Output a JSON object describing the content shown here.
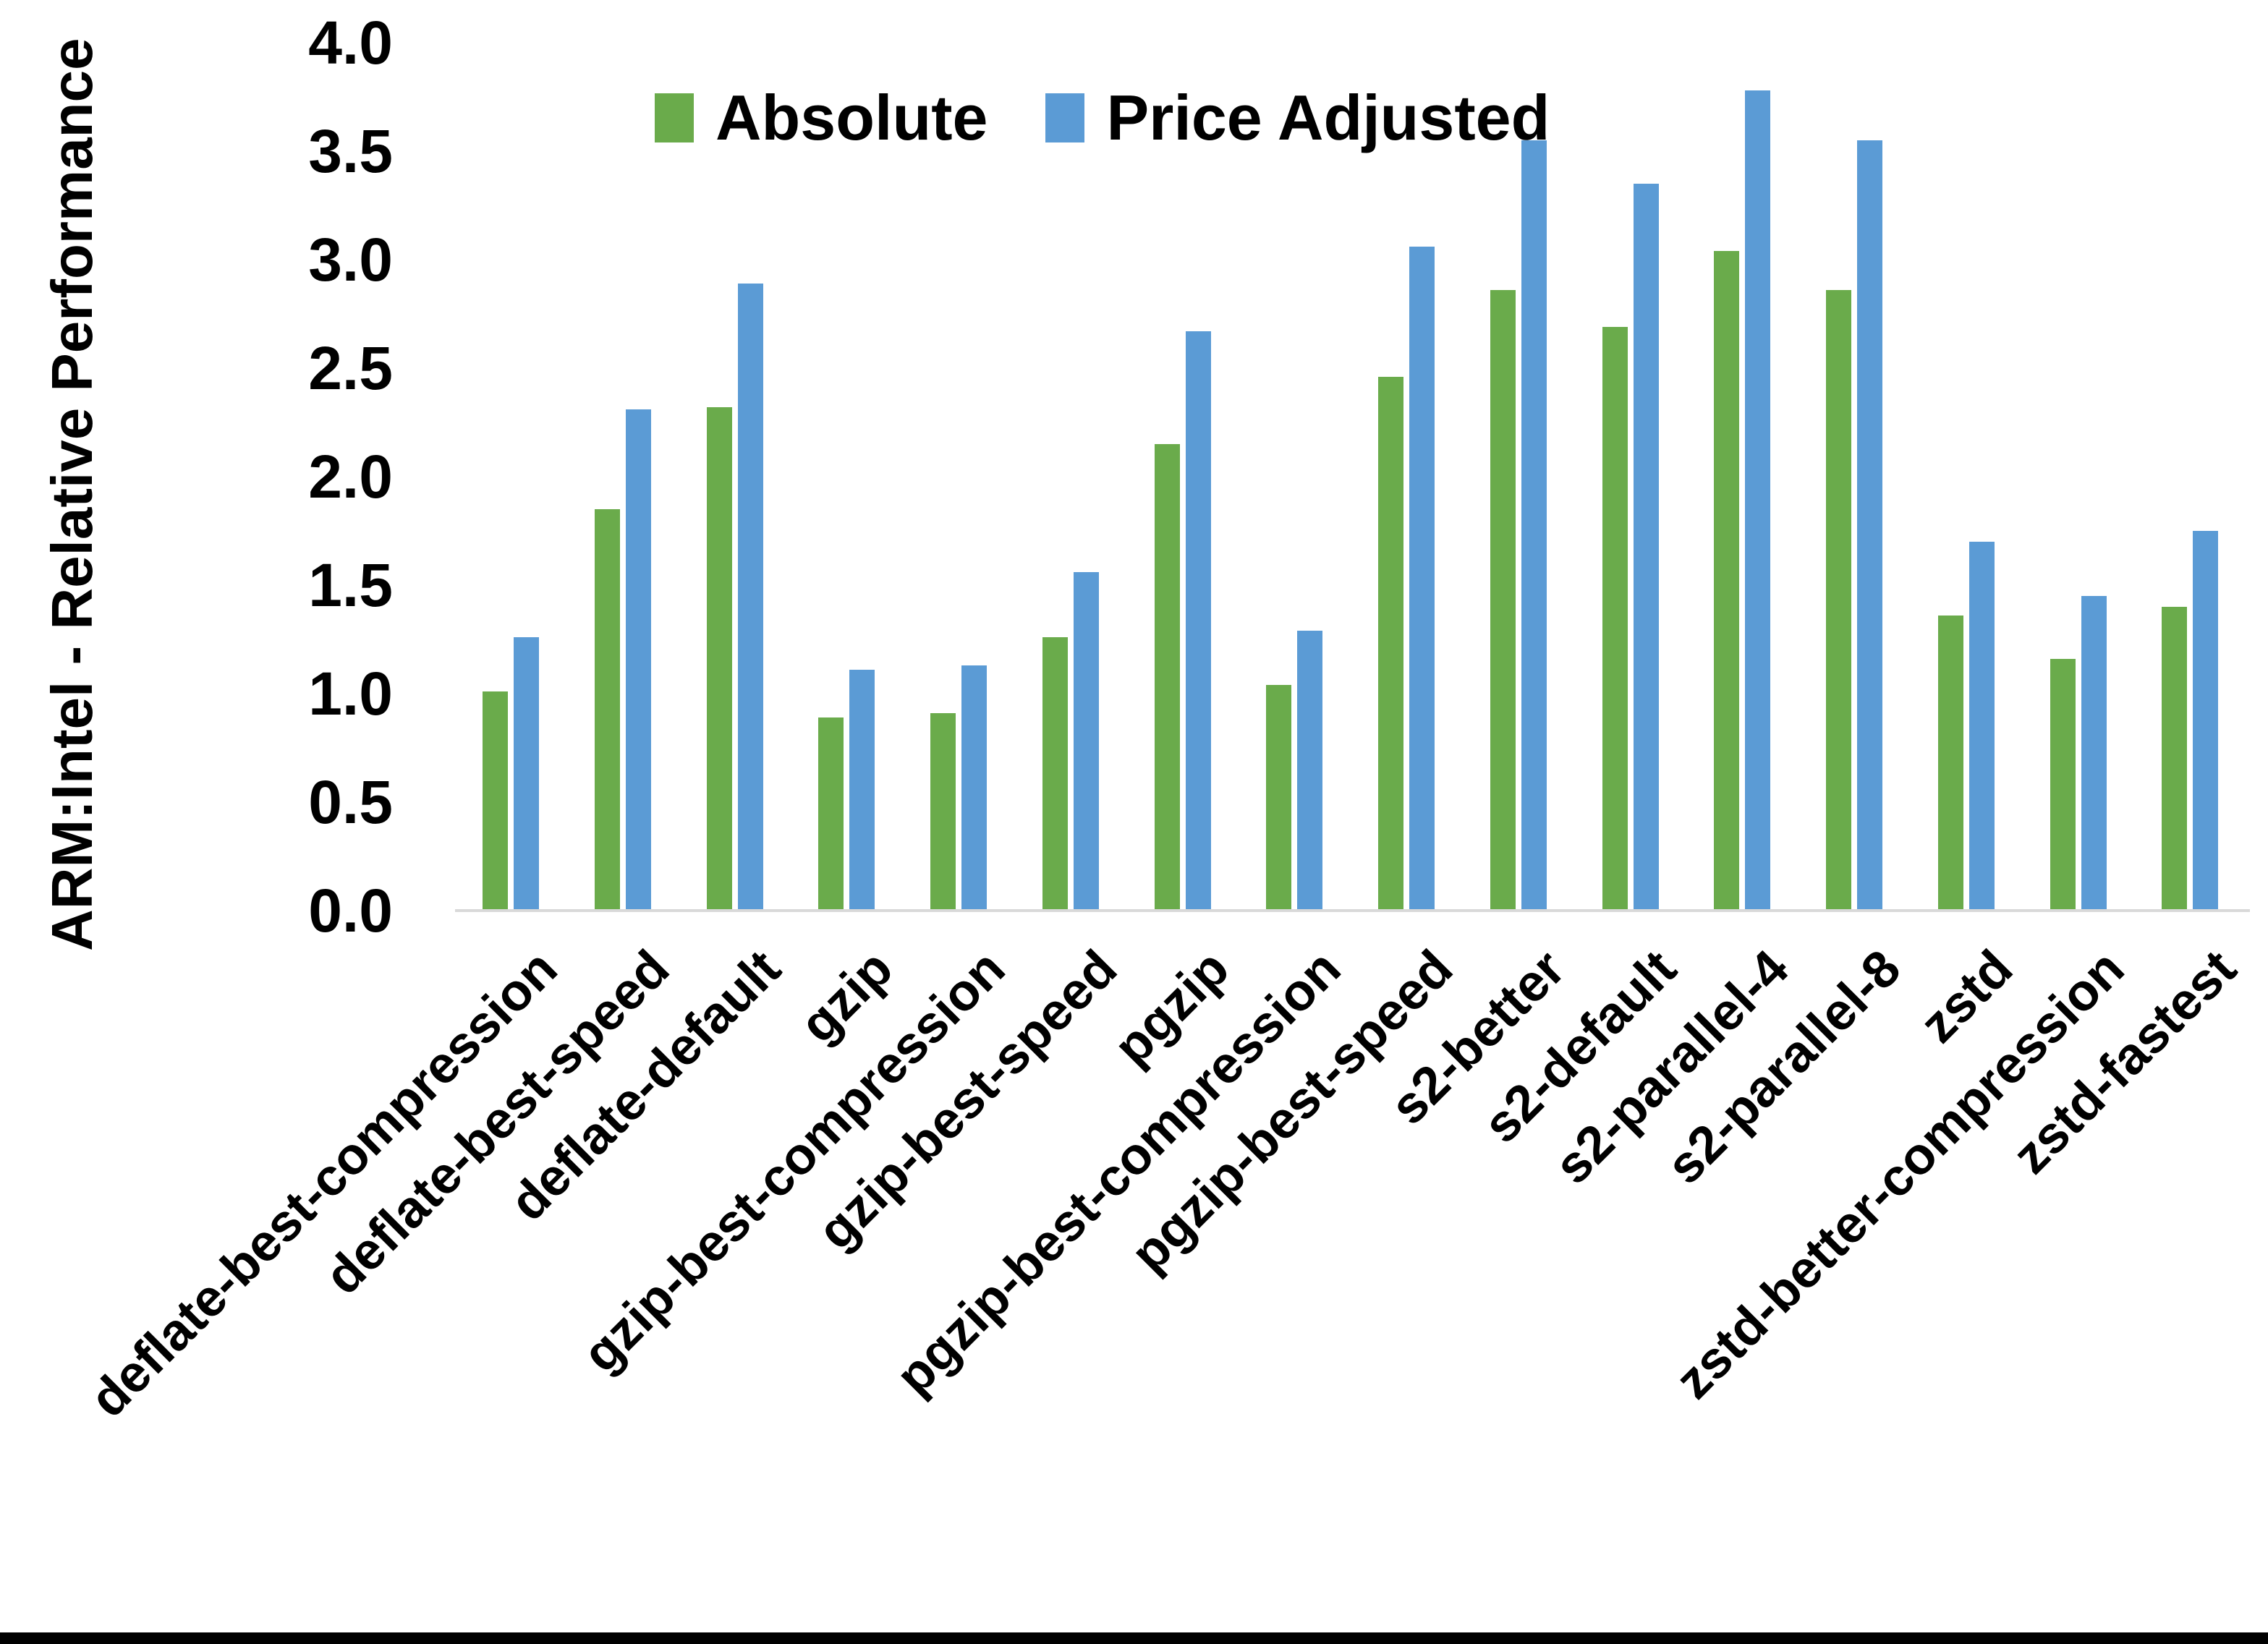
{
  "chart_data": {
    "type": "bar",
    "title": "",
    "xlabel": "",
    "ylabel": "ARM:Intel - Relative Performance",
    "ylim": [
      0,
      4
    ],
    "ytick_step": 0.5,
    "ytick_labels": [
      "0.0",
      "0.5",
      "1.0",
      "1.5",
      "2.0",
      "2.5",
      "3.0",
      "3.5",
      "4.0"
    ],
    "grid": false,
    "legend_position": "top-center",
    "categories": [
      "deflate-best-compression",
      "deflate-best-speed",
      "deflate-default",
      "gzip",
      "gzip-best-compression",
      "gzip-best-speed",
      "pgzip",
      "pgzip-best-compression",
      "pgzip-best-speed",
      "s2-better",
      "s2-default",
      "s2-parallel-4",
      "s2-parallel-8",
      "zstd",
      "zstd-better-compression",
      "zstd-fastest"
    ],
    "series": [
      {
        "name": "Absolute",
        "color": "#6aab4b",
        "values": [
          1.01,
          1.85,
          2.32,
          0.89,
          0.91,
          1.26,
          2.15,
          1.04,
          2.46,
          2.86,
          2.69,
          3.04,
          2.86,
          1.36,
          1.16,
          1.4
        ]
      },
      {
        "name": "Price Adjusted",
        "color": "#5b9bd5",
        "values": [
          1.26,
          2.31,
          2.89,
          1.11,
          1.13,
          1.56,
          2.67,
          1.29,
          3.06,
          3.55,
          3.35,
          3.78,
          3.55,
          1.7,
          1.45,
          1.75
        ]
      }
    ]
  },
  "colors": {
    "background": "#ffffff",
    "axis_line": "#d9d9d9",
    "text": "#000000",
    "bottom_bar": "#000000"
  }
}
